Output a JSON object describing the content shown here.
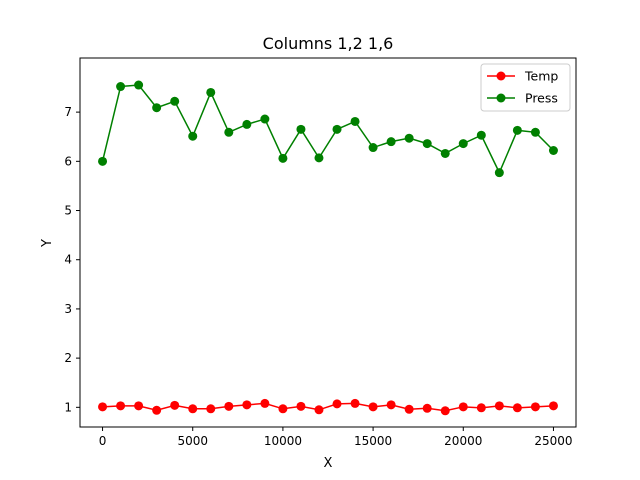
{
  "chart_data": {
    "type": "line",
    "title": "Columns 1,2 1,6",
    "xlabel": "X",
    "ylabel": "Y",
    "xlim": [
      -1250,
      26250
    ],
    "ylim": [
      0.6,
      8.1
    ],
    "xticks": [
      0,
      5000,
      10000,
      15000,
      20000,
      25000
    ],
    "xtick_labels": [
      "0",
      "5000",
      "10000",
      "15000",
      "20000",
      "25000"
    ],
    "yticks": [
      1,
      2,
      3,
      4,
      5,
      6,
      7
    ],
    "ytick_labels": [
      "1",
      "2",
      "3",
      "4",
      "5",
      "6",
      "7"
    ],
    "grid": false,
    "legend_position": "top-right",
    "x": [
      0,
      1000,
      2000,
      3000,
      4000,
      5000,
      6000,
      7000,
      8000,
      9000,
      10000,
      11000,
      12000,
      13000,
      14000,
      15000,
      16000,
      17000,
      18000,
      19000,
      20000,
      21000,
      22000,
      23000,
      24000,
      25000
    ],
    "series": [
      {
        "name": "Temp",
        "color": "#ff0000",
        "marker": "circle",
        "values": [
          1.01,
          1.03,
          1.03,
          0.94,
          1.04,
          0.97,
          0.97,
          1.02,
          1.05,
          1.08,
          0.97,
          1.02,
          0.95,
          1.07,
          1.08,
          1.01,
          1.05,
          0.96,
          0.98,
          0.93,
          1.01,
          0.99,
          1.03,
          0.99,
          1.01,
          1.03
        ]
      },
      {
        "name": "Press",
        "color": "#008000",
        "marker": "circle",
        "values": [
          6.0,
          7.52,
          7.55,
          7.09,
          7.22,
          6.51,
          7.4,
          6.59,
          6.75,
          6.86,
          6.06,
          6.65,
          6.07,
          6.65,
          6.81,
          6.28,
          6.4,
          6.47,
          6.36,
          6.16,
          6.36,
          6.53,
          5.77,
          6.63,
          6.59,
          6.22
        ]
      }
    ]
  }
}
